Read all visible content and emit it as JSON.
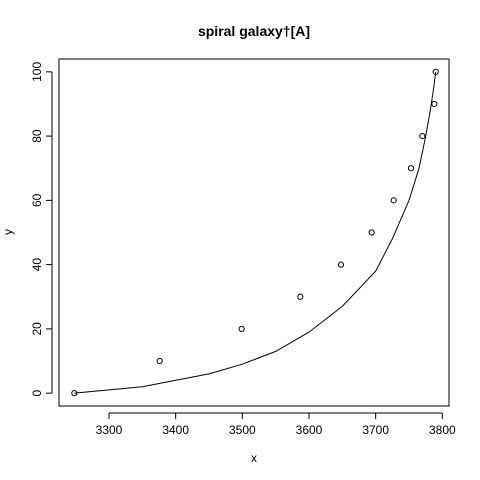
{
  "chart_data": {
    "type": "scatter",
    "title": "spiral galaxy†[A]",
    "xlabel": "x",
    "ylabel": "y",
    "xlim": [
      3225,
      3810
    ],
    "ylim": [
      -4,
      104
    ],
    "x_ticks": [
      3300,
      3400,
      3500,
      3600,
      3700,
      3800
    ],
    "y_ticks": [
      0,
      20,
      40,
      60,
      80,
      100
    ],
    "grid": false,
    "series": [
      {
        "type": "scatter",
        "x": [
          3248,
          3376,
          3499,
          3587,
          3648,
          3694,
          3727,
          3753,
          3770,
          3788,
          3790
        ],
        "y": [
          0,
          10,
          20,
          30,
          40,
          50,
          60,
          70,
          80,
          90,
          100
        ]
      },
      {
        "type": "line",
        "x": [
          3248,
          3300,
          3350,
          3400,
          3450,
          3500,
          3550,
          3600,
          3650,
          3700,
          3725,
          3750,
          3765,
          3775,
          3782,
          3787,
          3790
        ],
        "y": [
          0,
          1,
          2,
          4,
          6,
          9,
          13,
          19,
          27,
          38,
          48,
          60,
          70,
          80,
          88,
          95,
          100
        ]
      }
    ]
  }
}
